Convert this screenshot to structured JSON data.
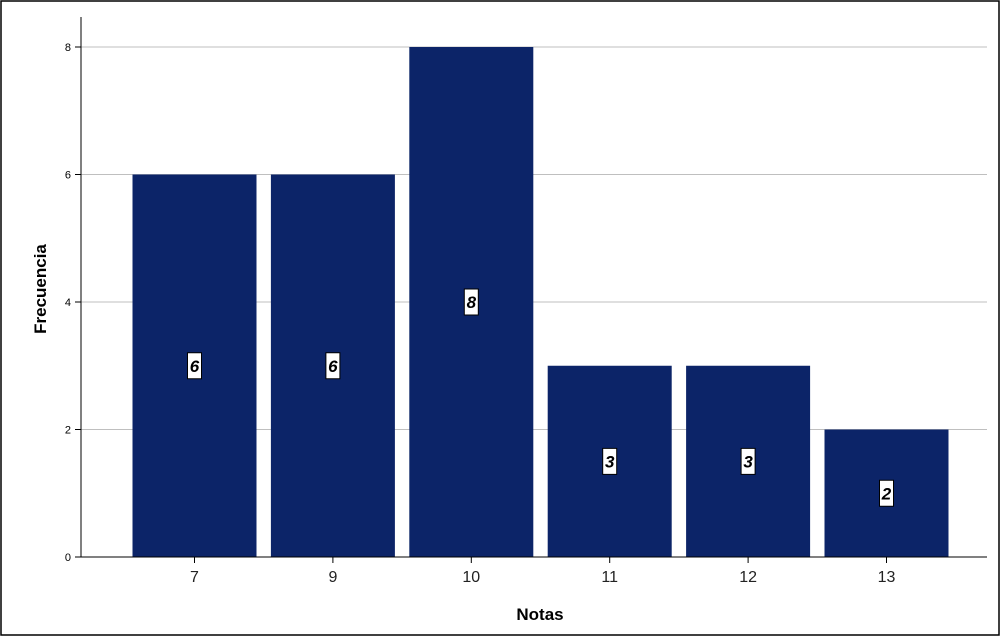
{
  "chart_data": {
    "type": "bar",
    "categories": [
      "7",
      "9",
      "10",
      "11",
      "12",
      "13"
    ],
    "values": [
      6,
      6,
      8,
      3,
      3,
      2
    ],
    "data_labels": [
      "6",
      "6",
      "8",
      "3",
      "3",
      "2"
    ],
    "title": "",
    "xlabel": "Notas",
    "ylabel": "Frecuencia",
    "ylim": [
      0,
      8
    ],
    "yticks": [
      0,
      2,
      4,
      6,
      8
    ],
    "grid": true,
    "legend": "none",
    "bar_color": "#0c2468"
  }
}
